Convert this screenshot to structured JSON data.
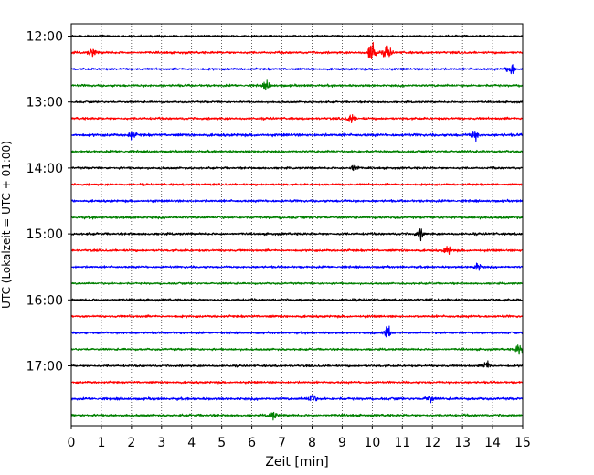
{
  "chart_data": {
    "type": "line",
    "title": "",
    "xlabel": "Zeit  [min]",
    "ylabel": "UTC (Lokalzeit = UTC + 01:00)",
    "xlim": [
      0,
      15
    ],
    "x_ticks": [
      0,
      1,
      2,
      3,
      4,
      5,
      6,
      7,
      8,
      9,
      10,
      11,
      12,
      13,
      14,
      15
    ],
    "y_tick_labels": [
      "12:00",
      "13:00",
      "14:00",
      "15:00",
      "16:00",
      "17:00"
    ],
    "grid": "vertical dotted at each minute",
    "trace_interval_min": 15,
    "start_utc": "12:00",
    "trace_colors": [
      "#000000",
      "#ff0000",
      "#0000ff",
      "#008000"
    ],
    "traces": [
      {
        "start": "12:00",
        "color": "#000000",
        "noise": 0.5,
        "bursts": []
      },
      {
        "start": "12:15",
        "color": "#ff0000",
        "noise": 0.6,
        "bursts": [
          {
            "t": 0.7,
            "amp": 2.0
          },
          {
            "t": 10.0,
            "amp": 7.0
          },
          {
            "t": 10.5,
            "amp": 4.0
          }
        ]
      },
      {
        "start": "12:30",
        "color": "#0000ff",
        "noise": 0.55,
        "bursts": [
          {
            "t": 14.6,
            "amp": 3.5
          }
        ]
      },
      {
        "start": "12:45",
        "color": "#008000",
        "noise": 0.6,
        "bursts": [
          {
            "t": 6.5,
            "amp": 2.0
          }
        ]
      },
      {
        "start": "13:00",
        "color": "#000000",
        "noise": 0.5,
        "bursts": []
      },
      {
        "start": "13:15",
        "color": "#ff0000",
        "noise": 0.6,
        "bursts": [
          {
            "t": 9.3,
            "amp": 2.5
          }
        ]
      },
      {
        "start": "13:30",
        "color": "#0000ff",
        "noise": 0.7,
        "bursts": [
          {
            "t": 2.0,
            "amp": 2.0
          },
          {
            "t": 13.4,
            "amp": 2.5
          }
        ]
      },
      {
        "start": "13:45",
        "color": "#008000",
        "noise": 0.6,
        "bursts": []
      },
      {
        "start": "14:00",
        "color": "#000000",
        "noise": 0.55,
        "bursts": [
          {
            "t": 9.4,
            "amp": 2.0
          }
        ]
      },
      {
        "start": "14:15",
        "color": "#ff0000",
        "noise": 0.55,
        "bursts": []
      },
      {
        "start": "14:30",
        "color": "#0000ff",
        "noise": 0.6,
        "bursts": []
      },
      {
        "start": "14:45",
        "color": "#008000",
        "noise": 0.65,
        "bursts": []
      },
      {
        "start": "15:00",
        "color": "#000000",
        "noise": 0.6,
        "bursts": [
          {
            "t": 11.6,
            "amp": 2.5
          }
        ]
      },
      {
        "start": "15:15",
        "color": "#ff0000",
        "noise": 0.6,
        "bursts": [
          {
            "t": 12.5,
            "amp": 2.0
          }
        ]
      },
      {
        "start": "15:30",
        "color": "#0000ff",
        "noise": 0.55,
        "bursts": [
          {
            "t": 13.5,
            "amp": 2.0
          }
        ]
      },
      {
        "start": "15:45",
        "color": "#008000",
        "noise": 0.5,
        "bursts": []
      },
      {
        "start": "16:00",
        "color": "#000000",
        "noise": 0.6,
        "bursts": []
      },
      {
        "start": "16:15",
        "color": "#ff0000",
        "noise": 0.6,
        "bursts": []
      },
      {
        "start": "16:30",
        "color": "#0000ff",
        "noise": 0.55,
        "bursts": [
          {
            "t": 10.5,
            "amp": 4.5
          }
        ]
      },
      {
        "start": "16:45",
        "color": "#008000",
        "noise": 0.55,
        "bursts": [
          {
            "t": 14.9,
            "amp": 3.0
          }
        ]
      },
      {
        "start": "17:00",
        "color": "#000000",
        "noise": 0.55,
        "bursts": [
          {
            "t": 13.8,
            "amp": 2.5
          }
        ]
      },
      {
        "start": "17:15",
        "color": "#ff0000",
        "noise": 0.55,
        "bursts": []
      },
      {
        "start": "17:30",
        "color": "#0000ff",
        "noise": 0.65,
        "bursts": [
          {
            "t": 8.0,
            "amp": 2.5
          },
          {
            "t": 11.9,
            "amp": 2.0
          }
        ]
      },
      {
        "start": "17:45",
        "color": "#008000",
        "noise": 0.6,
        "bursts": [
          {
            "t": 6.7,
            "amp": 2.0
          }
        ]
      }
    ]
  }
}
